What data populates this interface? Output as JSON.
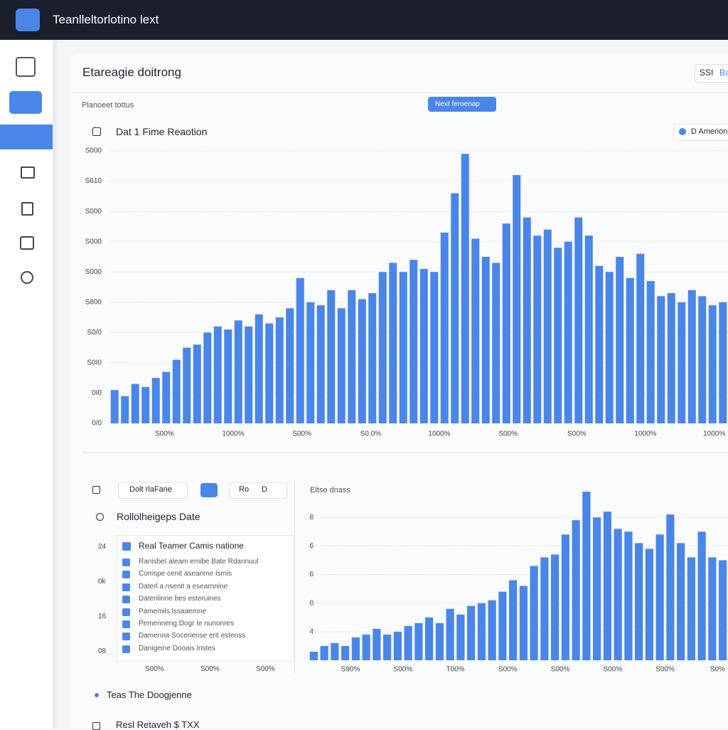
{
  "header": {
    "title": "Teanlleltorlotino lext"
  },
  "page": {
    "title": "Etareagie doitrong",
    "tabs": [
      "SSI",
      "Ba"
    ],
    "status": "Planoeet tottus",
    "button": "Next feroenap"
  },
  "top_chart": {
    "type": "bar",
    "title": "Dat 1 Fime Reaotion",
    "legend": "D Amerionu",
    "color": "#4a86e8",
    "values": [
      1.1,
      0.9,
      1.3,
      1.2,
      1.5,
      1.7,
      2.1,
      2.5,
      2.6,
      3.0,
      3.2,
      3.1,
      3.4,
      3.2,
      3.6,
      3.3,
      3.5,
      3.8,
      4.8,
      4.0,
      3.9,
      4.4,
      3.8,
      4.4,
      4.1,
      4.3,
      5.0,
      5.3,
      5.0,
      5.4,
      5.1,
      5.0,
      6.3,
      7.6,
      8.9,
      6.1,
      5.5,
      5.3,
      6.6,
      8.2,
      6.8,
      6.2,
      6.4,
      5.8,
      6.0,
      6.8,
      6.2,
      5.2,
      5.0,
      5.5,
      4.8,
      5.6,
      4.7,
      4.2,
      4.3,
      4.0,
      4.4,
      4.2,
      3.9,
      4.0
    ],
    "ylim": [
      0,
      9
    ],
    "yticks": [
      {
        "value": 0,
        "label": "0/0"
      },
      {
        "value": 1,
        "label": "0I0"
      },
      {
        "value": 2,
        "label": "S0I0"
      },
      {
        "value": 3,
        "label": "S0/0"
      },
      {
        "value": 4,
        "label": "S800"
      },
      {
        "value": 5,
        "label": "S000"
      },
      {
        "value": 6,
        "label": "S000"
      },
      {
        "value": 7,
        "label": "S000"
      },
      {
        "value": 8,
        "label": "S610"
      },
      {
        "value": 9,
        "label": "S000"
      }
    ],
    "xtick_labels": [
      "S00%",
      "1000%",
      "S00%",
      "S0.0%",
      "1000%",
      "S00%",
      "S00%",
      "1000%",
      "1000%"
    ],
    "grid": true
  },
  "filters": {
    "input": "Dolt rlaFane",
    "select1": "Ro",
    "select2": "D"
  },
  "list_panel": {
    "title": "Rollolheigeps Date",
    "row_labels": [
      "24",
      "0k",
      "16",
      "08"
    ],
    "items": [
      "Real Teamer Camis natione",
      "Ranisbet aleam emibe Bate Rdannuul",
      "Comspe cenit aseanme Ismis",
      "Daterl a nsenit a esearnnine",
      "Datenlinne bes esteruines",
      "Pamemils lssaaemne",
      "Pemenneng Dogr Ie nunonres",
      "Damenna Soceriense erit estenss",
      "Danigeine Dooais lnstes"
    ],
    "footer_labels": [
      "S00%",
      "S00%",
      "S00%"
    ]
  },
  "bottom_chart": {
    "type": "bar",
    "title": "Eltse dnass",
    "color": "#4a86e8",
    "values": [
      0.3,
      0.5,
      0.6,
      0.5,
      0.8,
      0.9,
      1.1,
      0.9,
      1.0,
      1.2,
      1.3,
      1.5,
      1.3,
      1.8,
      1.6,
      1.9,
      2.0,
      2.1,
      2.4,
      2.8,
      2.6,
      3.3,
      3.6,
      3.7,
      4.4,
      4.9,
      5.9,
      5.0,
      5.2,
      4.6,
      4.5,
      4.1,
      3.9,
      4.4,
      5.1,
      4.1,
      3.6,
      4.5,
      3.6,
      3.5
    ],
    "ylim": [
      0,
      6
    ],
    "yticks": [
      {
        "value": 1,
        "label": "4"
      },
      {
        "value": 2,
        "label": "0"
      },
      {
        "value": 3,
        "label": "6"
      },
      {
        "value": 4,
        "label": "6"
      },
      {
        "value": 5,
        "label": "8"
      }
    ],
    "xtick_labels": [
      "S90%",
      "S00%",
      "T00%",
      "S00%",
      "S00%",
      "S00%",
      "S00%",
      "S0%"
    ],
    "grid": true
  },
  "footer": {
    "item1": "Teas The Doogjenne",
    "item2": "Resl Retaveh $ TXX"
  }
}
